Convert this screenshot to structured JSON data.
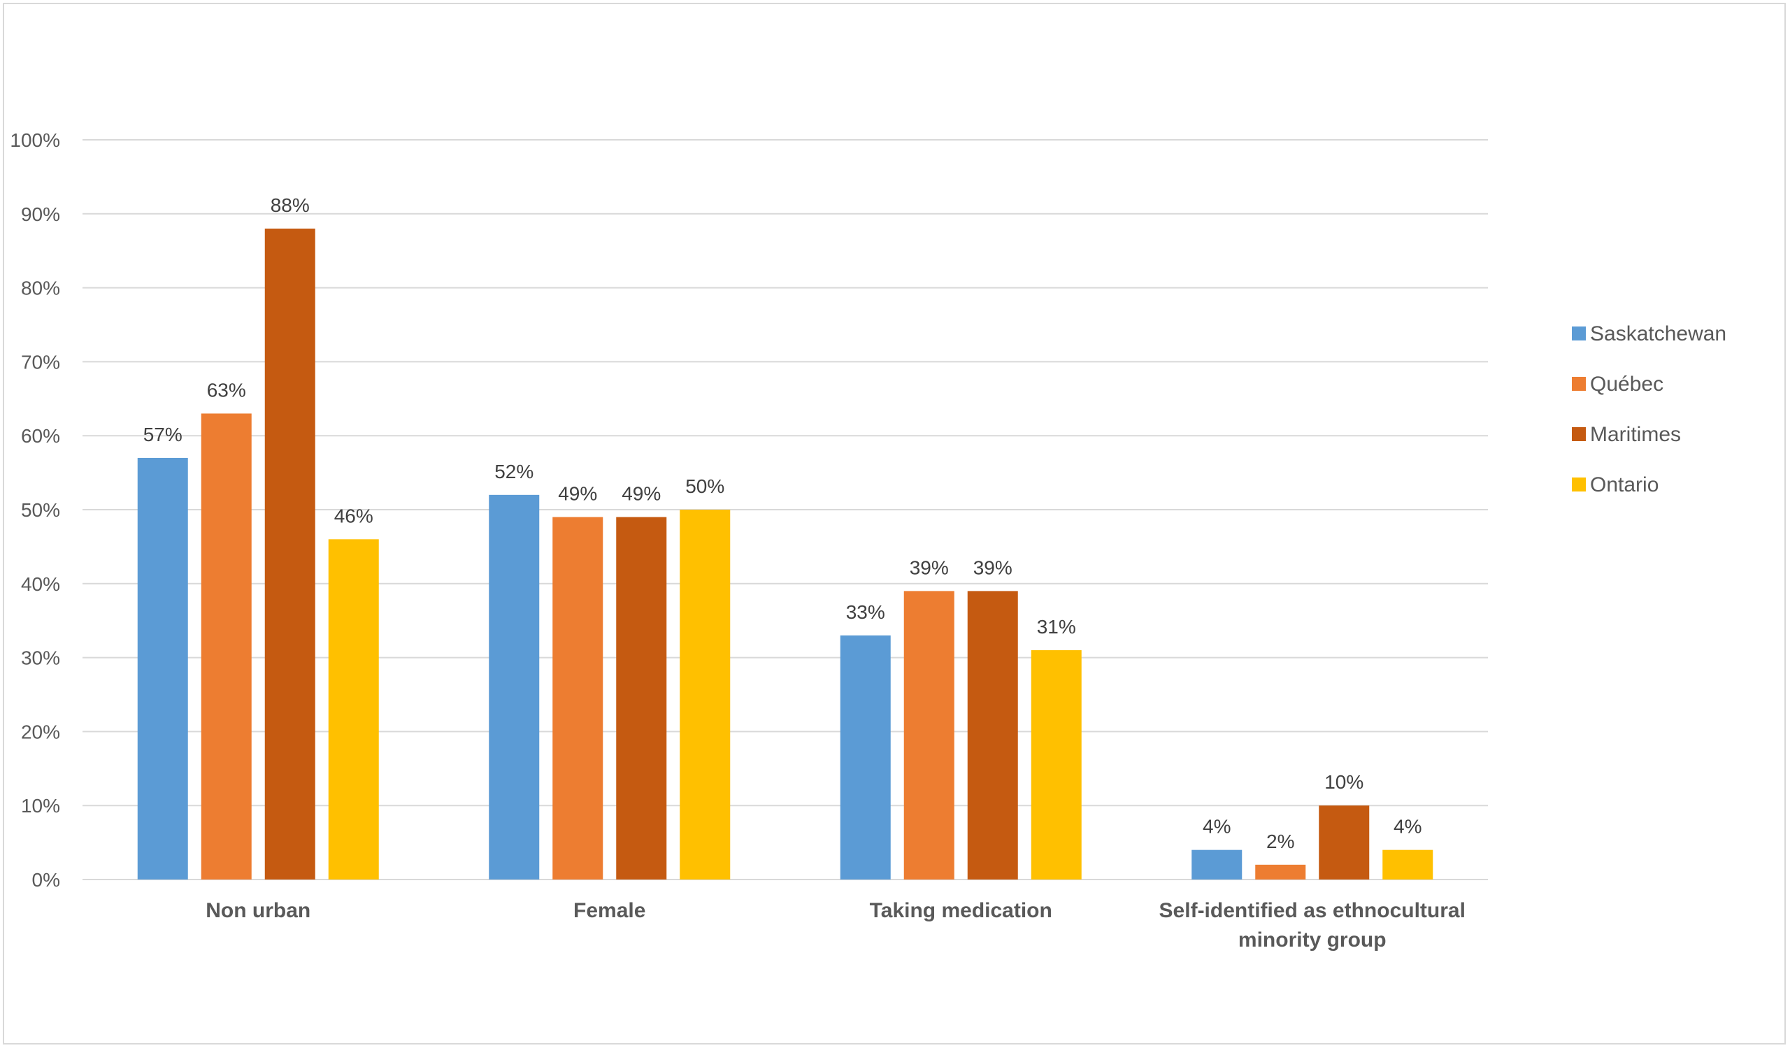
{
  "chart_data": {
    "type": "bar",
    "title": "",
    "xlabel": "",
    "ylabel": "",
    "categories": [
      [
        "Non urban"
      ],
      [
        "Female"
      ],
      [
        "Taking medication"
      ],
      [
        "Self-identified as ethnocultural",
        "minority group"
      ]
    ],
    "series": [
      {
        "name": "Saskatchewan",
        "color": "#5b9bd5",
        "values": [
          57,
          52,
          33,
          4
        ]
      },
      {
        "name": "Québec",
        "color": "#ed7d31",
        "values": [
          63,
          49,
          39,
          2
        ]
      },
      {
        "name": "Maritimes",
        "color": "#c55a11",
        "values": [
          88,
          49,
          39,
          10
        ]
      },
      {
        "name": "Ontario",
        "color": "#ffc000",
        "values": [
          46,
          50,
          31,
          4
        ]
      }
    ],
    "ylim": [
      0,
      100
    ],
    "yticks": [
      0,
      10,
      20,
      30,
      40,
      50,
      60,
      70,
      80,
      90,
      100
    ],
    "value_suffix": "%",
    "grid": true,
    "legend_position": "right"
  }
}
